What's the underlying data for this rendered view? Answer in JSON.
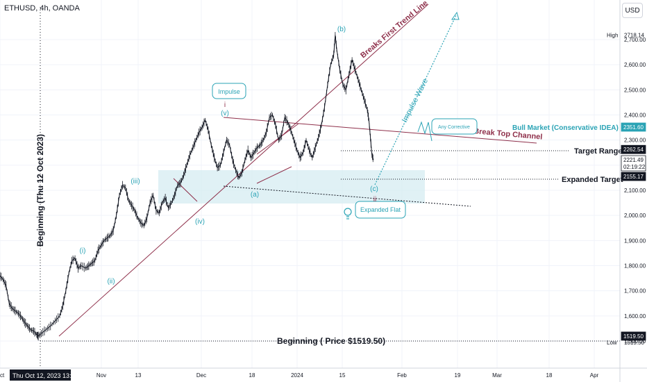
{
  "header": {
    "symbol": "ETHUSD, 4h, OANDA",
    "currency_button": "USD"
  },
  "chart_data": {
    "type": "line",
    "title": "ETHUSD, 4h, OANDA",
    "xlabel": "",
    "ylabel": "",
    "ylim": [
      1480,
      2750
    ],
    "y_ticks": [
      1500,
      1600,
      1700,
      1800,
      1900,
      2000,
      2100,
      2200,
      2300,
      2400,
      2500,
      2600,
      2700
    ],
    "y_tick_labels": [
      "1,500.00",
      "1,600.00",
      "1,700.00",
      "1,800.00",
      "1,900.00",
      "2,000.00",
      "2,100.00",
      "2,200.00",
      "2,300.00",
      "2,400.00",
      "2,500.00",
      "2,600.00",
      "2,700.00"
    ],
    "x_labels": [
      "ct",
      "Nov",
      "13",
      "Dec",
      "18",
      "2024",
      "15",
      "Feb",
      "19",
      "Mar",
      "18",
      "Apr"
    ],
    "cursor_date_label": "Thu Oct 12, 2023  13:00",
    "grid": true,
    "series": [
      {
        "points": [
          [
            0,
            1760
          ],
          [
            2,
            1745
          ],
          [
            4,
            1720
          ],
          [
            6,
            1650
          ],
          [
            8,
            1630
          ],
          [
            10,
            1620
          ],
          [
            12,
            1610
          ],
          [
            14,
            1595
          ],
          [
            16,
            1575
          ],
          [
            18,
            1560
          ],
          [
            20,
            1545
          ],
          [
            22,
            1540
          ],
          [
            24,
            1525
          ],
          [
            25,
            1519.5
          ],
          [
            27,
            1530
          ],
          [
            30,
            1545
          ],
          [
            33,
            1560
          ],
          [
            36,
            1580
          ],
          [
            39,
            1600
          ],
          [
            41,
            1640
          ],
          [
            43,
            1700
          ],
          [
            45,
            1770
          ],
          [
            47,
            1820
          ],
          [
            49,
            1830
          ],
          [
            51,
            1790
          ],
          [
            53,
            1800
          ],
          [
            56,
            1790
          ],
          [
            58,
            1800
          ],
          [
            60,
            1810
          ],
          [
            62,
            1820
          ],
          [
            64,
            1860
          ],
          [
            66,
            1880
          ],
          [
            68,
            1900
          ],
          [
            70,
            1910
          ],
          [
            72,
            1920
          ],
          [
            74,
            1940
          ],
          [
            76,
            2000
          ],
          [
            78,
            2080
          ],
          [
            80,
            2120
          ],
          [
            82,
            2110
          ],
          [
            84,
            2060
          ],
          [
            86,
            2040
          ],
          [
            88,
            2020
          ],
          [
            90,
            1990
          ],
          [
            92,
            1970
          ],
          [
            94,
            1960
          ],
          [
            96,
            1990
          ],
          [
            98,
            2050
          ],
          [
            100,
            2080
          ],
          [
            102,
            2020
          ],
          [
            104,
            2010
          ],
          [
            106,
            2050
          ],
          [
            108,
            2070
          ],
          [
            110,
            2030
          ],
          [
            112,
            2050
          ],
          [
            114,
            2080
          ],
          [
            116,
            2120
          ],
          [
            118,
            2130
          ],
          [
            120,
            2160
          ],
          [
            122,
            2200
          ],
          [
            124,
            2240
          ],
          [
            126,
            2270
          ],
          [
            128,
            2300
          ],
          [
            130,
            2330
          ],
          [
            132,
            2350
          ],
          [
            134,
            2380
          ],
          [
            136,
            2340
          ],
          [
            138,
            2280
          ],
          [
            140,
            2230
          ],
          [
            142,
            2190
          ],
          [
            144,
            2200
          ],
          [
            146,
            2250
          ],
          [
            148,
            2300
          ],
          [
            150,
            2280
          ],
          [
            152,
            2220
          ],
          [
            154,
            2180
          ],
          [
            156,
            2150
          ],
          [
            158,
            2170
          ],
          [
            160,
            2220
          ],
          [
            162,
            2260
          ],
          [
            164,
            2230
          ],
          [
            166,
            2250
          ],
          [
            168,
            2270
          ],
          [
            170,
            2280
          ],
          [
            172,
            2300
          ],
          [
            174,
            2330
          ],
          [
            176,
            2390
          ],
          [
            178,
            2400
          ],
          [
            180,
            2360
          ],
          [
            182,
            2300
          ],
          [
            184,
            2320
          ],
          [
            186,
            2390
          ],
          [
            188,
            2370
          ],
          [
            190,
            2340
          ],
          [
            192,
            2300
          ],
          [
            194,
            2260
          ],
          [
            196,
            2230
          ],
          [
            198,
            2250
          ],
          [
            200,
            2300
          ],
          [
            202,
            2260
          ],
          [
            204,
            2230
          ],
          [
            206,
            2270
          ],
          [
            208,
            2310
          ],
          [
            210,
            2360
          ],
          [
            212,
            2430
          ],
          [
            214,
            2520
          ],
          [
            216,
            2600
          ],
          [
            218,
            2640
          ],
          [
            219,
            2718.14
          ],
          [
            220,
            2660
          ],
          [
            222,
            2580
          ],
          [
            224,
            2520
          ],
          [
            226,
            2500
          ],
          [
            228,
            2560
          ],
          [
            230,
            2620
          ],
          [
            232,
            2580
          ],
          [
            234,
            2540
          ],
          [
            236,
            2500
          ],
          [
            238,
            2460
          ],
          [
            240,
            2420
          ],
          [
            241,
            2380
          ],
          [
            242,
            2310
          ],
          [
            243,
            2240
          ],
          [
            244,
            2221.49
          ]
        ]
      }
    ],
    "last_price": 2221.49,
    "last_price_time": "02:19:22",
    "high": 2718.14,
    "low": 1519.5,
    "price_tags": [
      {
        "label": "High",
        "value": "2718.14",
        "price": 2718.14,
        "style": "plain"
      },
      {
        "value": "2351.60",
        "price": 2351.6,
        "style": "teal"
      },
      {
        "value": "2262.54",
        "price": 2262.54,
        "style": "dark"
      },
      {
        "value": "2221.49",
        "sub": "02:19:22",
        "price": 2221.49,
        "style": "outline"
      },
      {
        "value": "2155.17",
        "price": 2155.17,
        "style": "dark"
      },
      {
        "value": "1519.50",
        "price": 1519.5,
        "style": "dark"
      },
      {
        "label": "Low",
        "value": "1519.50",
        "price": 1495,
        "style": "plain"
      }
    ],
    "annotations": {
      "beginning_vertical": "Beginning (Thu 12 Oct 2023)",
      "beginning_price": "Beginning ( Price $1519.50)",
      "breaks_first_trend_line": "Breaks First Trend Line",
      "break_top_channel": "Break Top Channel",
      "bull_market": "Bull Market (Conservative IDEA)",
      "target_range": "Target Range",
      "expanded_target": "Expanded Target",
      "impulse_wave": "Impulse Wave",
      "impulse_box": "Impulse",
      "any_corrective_box": "Any Corrective",
      "expanded_flat_box": "Expanded Flat",
      "wave_labels": [
        "(i)",
        "(ii)",
        "(iii)",
        "(iv)",
        "(v)",
        "i",
        "(a)",
        "(b)",
        "(c)",
        "ii"
      ]
    }
  },
  "colors": {
    "price": "#131722",
    "teal": "#2aa3b5",
    "maroon": "#8e2f4a",
    "zone": "#d6ecf1",
    "grid": "#f0f3fa",
    "axis_text": "#131722",
    "axis_border": "#d1d4dc"
  }
}
